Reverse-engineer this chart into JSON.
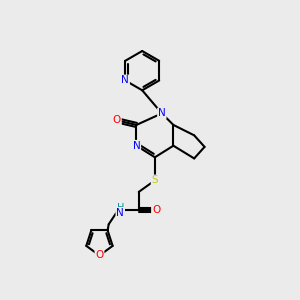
{
  "bg_color": "#ebebeb",
  "atom_colors": {
    "N": "#0000ff",
    "O": "#ff0000",
    "S": "#cccc00",
    "H": "#009090",
    "C": "#000000"
  },
  "bond_color": "#000000",
  "bond_width": 1.5
}
